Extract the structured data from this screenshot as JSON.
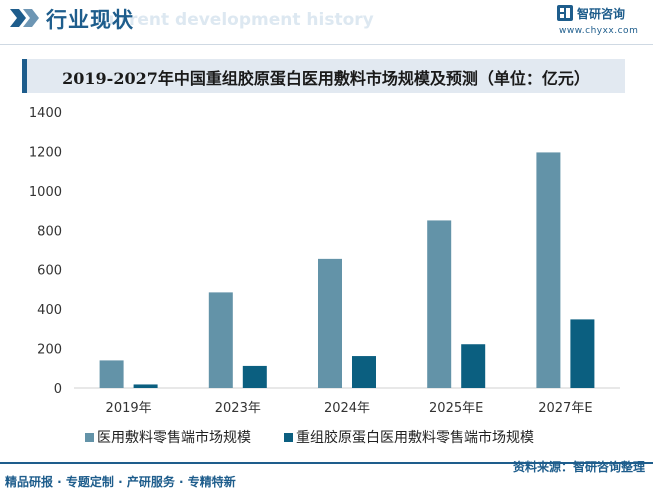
{
  "header": {
    "title": "行业现状",
    "ghost_text": "Current development history",
    "brand_name": "智研咨询",
    "brand_url": "www.chyxx.com",
    "brand_color": "#1e5d8c"
  },
  "chart_data": {
    "type": "bar",
    "title": "2019-2027年中国重组胶原蛋白医用敷料市场规模及预测（单位：亿元）",
    "categories": [
      "2019年",
      "2023年",
      "2024年",
      "2025年E",
      "2027年E"
    ],
    "series": [
      {
        "name": "医用敷料零售端市场规模",
        "color": "#6393a8",
        "values": [
          140,
          485,
          655,
          850,
          1195
        ]
      },
      {
        "name": "重组胶原蛋白医用敷料零售端市场规模",
        "color": "#0b5f80",
        "values": [
          18,
          112,
          162,
          222,
          348
        ]
      }
    ],
    "y_ticks": [
      "0",
      "200",
      "400",
      "600",
      "800",
      "1000",
      "1200",
      "1400"
    ],
    "ylim": [
      0,
      1400
    ],
    "xlabel": "",
    "ylabel": "",
    "grid": false,
    "legend_position": "bottom"
  },
  "footer": {
    "left_text": "精品研报 · 专题定制 · 产研服务 · 专精特新",
    "source_text": "资料来源：智研咨询整理"
  }
}
